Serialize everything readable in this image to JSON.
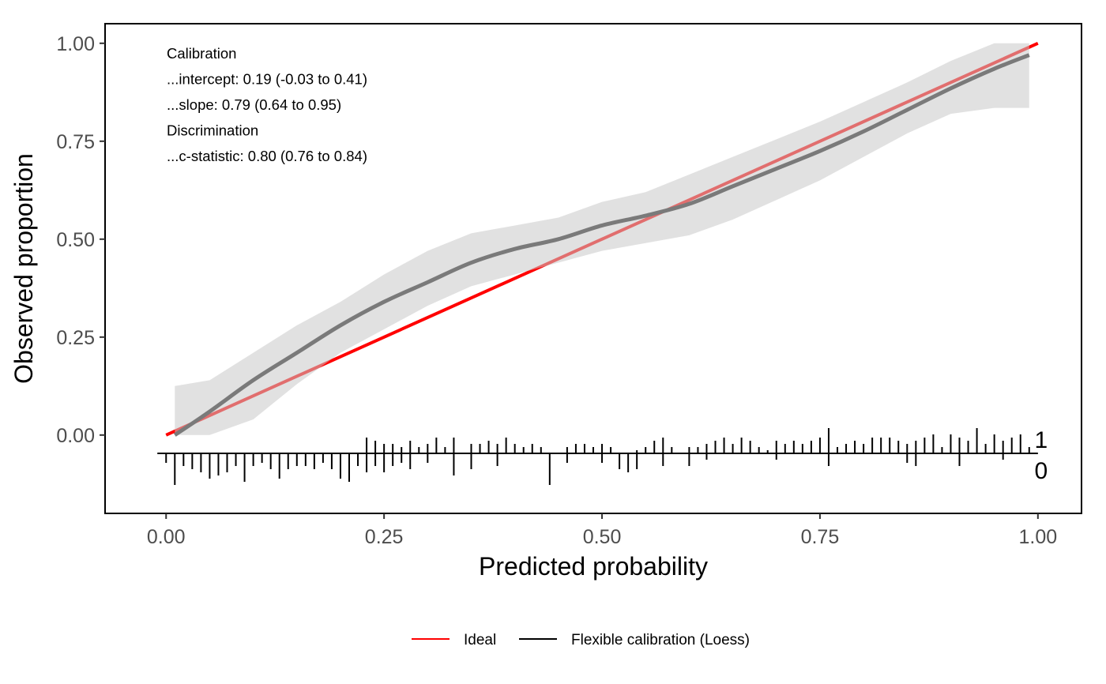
{
  "chart_data": {
    "type": "line",
    "xlabel": "Predicted probability",
    "ylabel": "Observed proportion",
    "xlim": [
      -0.07,
      1.05
    ],
    "ylim": [
      -0.2,
      1.05
    ],
    "x_ticks": [
      "0.00",
      "0.25",
      "0.50",
      "0.75",
      "1.00"
    ],
    "y_ticks": [
      "0.00",
      "0.25",
      "0.50",
      "0.75",
      "1.00"
    ],
    "grid": false,
    "legend_position": "bottom",
    "annotations": [
      "Calibration",
      "...intercept: 0.19 (-0.03 to 0.41)",
      "...slope: 0.79 (0.64 to 0.95)",
      "Discrimination",
      "...c-statistic: 0.80 (0.76 to 0.84)"
    ],
    "series": [
      {
        "name": "Ideal",
        "color": "#ff0000",
        "x": [
          0,
          1
        ],
        "y": [
          0,
          1
        ]
      },
      {
        "name": "Flexible calibration (Loess)",
        "color": "#000000",
        "curve_color": "#7a7a7a",
        "band_color": "#c8c8c8",
        "x": [
          0.01,
          0.05,
          0.1,
          0.15,
          0.2,
          0.25,
          0.3,
          0.35,
          0.4,
          0.45,
          0.5,
          0.55,
          0.6,
          0.65,
          0.7,
          0.75,
          0.8,
          0.85,
          0.9,
          0.95,
          0.99
        ],
        "y": [
          0.0,
          0.06,
          0.14,
          0.21,
          0.28,
          0.34,
          0.39,
          0.44,
          0.475,
          0.5,
          0.535,
          0.56,
          0.59,
          0.635,
          0.68,
          0.725,
          0.775,
          0.83,
          0.885,
          0.935,
          0.97
        ],
        "lower": [
          0.0,
          0.0,
          0.04,
          0.13,
          0.21,
          0.27,
          0.33,
          0.38,
          0.41,
          0.44,
          0.47,
          0.49,
          0.51,
          0.55,
          0.6,
          0.65,
          0.71,
          0.77,
          0.82,
          0.835,
          0.835
        ],
        "upper": [
          0.125,
          0.14,
          0.21,
          0.28,
          0.34,
          0.41,
          0.47,
          0.515,
          0.535,
          0.555,
          0.595,
          0.62,
          0.665,
          0.71,
          0.755,
          0.8,
          0.85,
          0.9,
          0.955,
          1.0,
          1.0
        ]
      }
    ],
    "rug": {
      "label_events": "1",
      "label_nonevents": "0",
      "events": [
        {
          "x": 0.23,
          "h": 0.5
        },
        {
          "x": 0.24,
          "h": 0.4
        },
        {
          "x": 0.25,
          "h": 0.3
        },
        {
          "x": 0.26,
          "h": 0.3
        },
        {
          "x": 0.27,
          "h": 0.2
        },
        {
          "x": 0.28,
          "h": 0.4
        },
        {
          "x": 0.29,
          "h": 0.2
        },
        {
          "x": 0.3,
          "h": 0.3
        },
        {
          "x": 0.31,
          "h": 0.5
        },
        {
          "x": 0.32,
          "h": 0.2
        },
        {
          "x": 0.33,
          "h": 0.5
        },
        {
          "x": 0.35,
          "h": 0.3
        },
        {
          "x": 0.36,
          "h": 0.3
        },
        {
          "x": 0.37,
          "h": 0.4
        },
        {
          "x": 0.38,
          "h": 0.3
        },
        {
          "x": 0.39,
          "h": 0.5
        },
        {
          "x": 0.4,
          "h": 0.3
        },
        {
          "x": 0.41,
          "h": 0.2
        },
        {
          "x": 0.42,
          "h": 0.3
        },
        {
          "x": 0.43,
          "h": 0.2
        },
        {
          "x": 0.46,
          "h": 0.2
        },
        {
          "x": 0.47,
          "h": 0.3
        },
        {
          "x": 0.48,
          "h": 0.3
        },
        {
          "x": 0.49,
          "h": 0.2
        },
        {
          "x": 0.5,
          "h": 0.3
        },
        {
          "x": 0.51,
          "h": 0.2
        },
        {
          "x": 0.54,
          "h": 0.1
        },
        {
          "x": 0.55,
          "h": 0.2
        },
        {
          "x": 0.56,
          "h": 0.4
        },
        {
          "x": 0.57,
          "h": 0.5
        },
        {
          "x": 0.58,
          "h": 0.2
        },
        {
          "x": 0.6,
          "h": 0.2
        },
        {
          "x": 0.61,
          "h": 0.2
        },
        {
          "x": 0.62,
          "h": 0.3
        },
        {
          "x": 0.63,
          "h": 0.4
        },
        {
          "x": 0.64,
          "h": 0.5
        },
        {
          "x": 0.65,
          "h": 0.3
        },
        {
          "x": 0.66,
          "h": 0.5
        },
        {
          "x": 0.67,
          "h": 0.4
        },
        {
          "x": 0.68,
          "h": 0.2
        },
        {
          "x": 0.69,
          "h": 0.1
        },
        {
          "x": 0.7,
          "h": 0.4
        },
        {
          "x": 0.71,
          "h": 0.3
        },
        {
          "x": 0.72,
          "h": 0.4
        },
        {
          "x": 0.73,
          "h": 0.3
        },
        {
          "x": 0.74,
          "h": 0.4
        },
        {
          "x": 0.75,
          "h": 0.5
        },
        {
          "x": 0.76,
          "h": 0.8
        },
        {
          "x": 0.77,
          "h": 0.2
        },
        {
          "x": 0.78,
          "h": 0.3
        },
        {
          "x": 0.79,
          "h": 0.4
        },
        {
          "x": 0.8,
          "h": 0.3
        },
        {
          "x": 0.81,
          "h": 0.5
        },
        {
          "x": 0.82,
          "h": 0.5
        },
        {
          "x": 0.83,
          "h": 0.5
        },
        {
          "x": 0.84,
          "h": 0.4
        },
        {
          "x": 0.85,
          "h": 0.3
        },
        {
          "x": 0.86,
          "h": 0.4
        },
        {
          "x": 0.87,
          "h": 0.5
        },
        {
          "x": 0.88,
          "h": 0.6
        },
        {
          "x": 0.89,
          "h": 0.2
        },
        {
          "x": 0.9,
          "h": 0.6
        },
        {
          "x": 0.91,
          "h": 0.5
        },
        {
          "x": 0.92,
          "h": 0.4
        },
        {
          "x": 0.93,
          "h": 0.8
        },
        {
          "x": 0.94,
          "h": 0.3
        },
        {
          "x": 0.95,
          "h": 0.6
        },
        {
          "x": 0.96,
          "h": 0.4
        },
        {
          "x": 0.97,
          "h": 0.5
        },
        {
          "x": 0.98,
          "h": 0.6
        },
        {
          "x": 0.99,
          "h": 0.2
        }
      ],
      "nonevents": [
        {
          "x": 0.0,
          "h": 0.3
        },
        {
          "x": 0.01,
          "h": 1.0
        },
        {
          "x": 0.02,
          "h": 0.4
        },
        {
          "x": 0.03,
          "h": 0.5
        },
        {
          "x": 0.04,
          "h": 0.6
        },
        {
          "x": 0.05,
          "h": 0.8
        },
        {
          "x": 0.06,
          "h": 0.7
        },
        {
          "x": 0.07,
          "h": 0.6
        },
        {
          "x": 0.08,
          "h": 0.4
        },
        {
          "x": 0.09,
          "h": 0.9
        },
        {
          "x": 0.1,
          "h": 0.4
        },
        {
          "x": 0.11,
          "h": 0.3
        },
        {
          "x": 0.12,
          "h": 0.5
        },
        {
          "x": 0.13,
          "h": 0.8
        },
        {
          "x": 0.14,
          "h": 0.5
        },
        {
          "x": 0.15,
          "h": 0.4
        },
        {
          "x": 0.16,
          "h": 0.4
        },
        {
          "x": 0.17,
          "h": 0.5
        },
        {
          "x": 0.18,
          "h": 0.3
        },
        {
          "x": 0.19,
          "h": 0.5
        },
        {
          "x": 0.2,
          "h": 0.8
        },
        {
          "x": 0.21,
          "h": 0.9
        },
        {
          "x": 0.22,
          "h": 0.4
        },
        {
          "x": 0.23,
          "h": 0.6
        },
        {
          "x": 0.24,
          "h": 0.4
        },
        {
          "x": 0.25,
          "h": 0.6
        },
        {
          "x": 0.26,
          "h": 0.4
        },
        {
          "x": 0.27,
          "h": 0.3
        },
        {
          "x": 0.28,
          "h": 0.5
        },
        {
          "x": 0.3,
          "h": 0.3
        },
        {
          "x": 0.33,
          "h": 0.7
        },
        {
          "x": 0.35,
          "h": 0.5
        },
        {
          "x": 0.38,
          "h": 0.4
        },
        {
          "x": 0.44,
          "h": 1.0
        },
        {
          "x": 0.46,
          "h": 0.3
        },
        {
          "x": 0.5,
          "h": 0.3
        },
        {
          "x": 0.52,
          "h": 0.5
        },
        {
          "x": 0.53,
          "h": 0.6
        },
        {
          "x": 0.54,
          "h": 0.5
        },
        {
          "x": 0.57,
          "h": 0.4
        },
        {
          "x": 0.6,
          "h": 0.4
        },
        {
          "x": 0.62,
          "h": 0.2
        },
        {
          "x": 0.7,
          "h": 0.2
        },
        {
          "x": 0.76,
          "h": 0.4
        },
        {
          "x": 0.85,
          "h": 0.3
        },
        {
          "x": 0.86,
          "h": 0.4
        },
        {
          "x": 0.91,
          "h": 0.4
        },
        {
          "x": 0.96,
          "h": 0.2
        }
      ]
    }
  }
}
